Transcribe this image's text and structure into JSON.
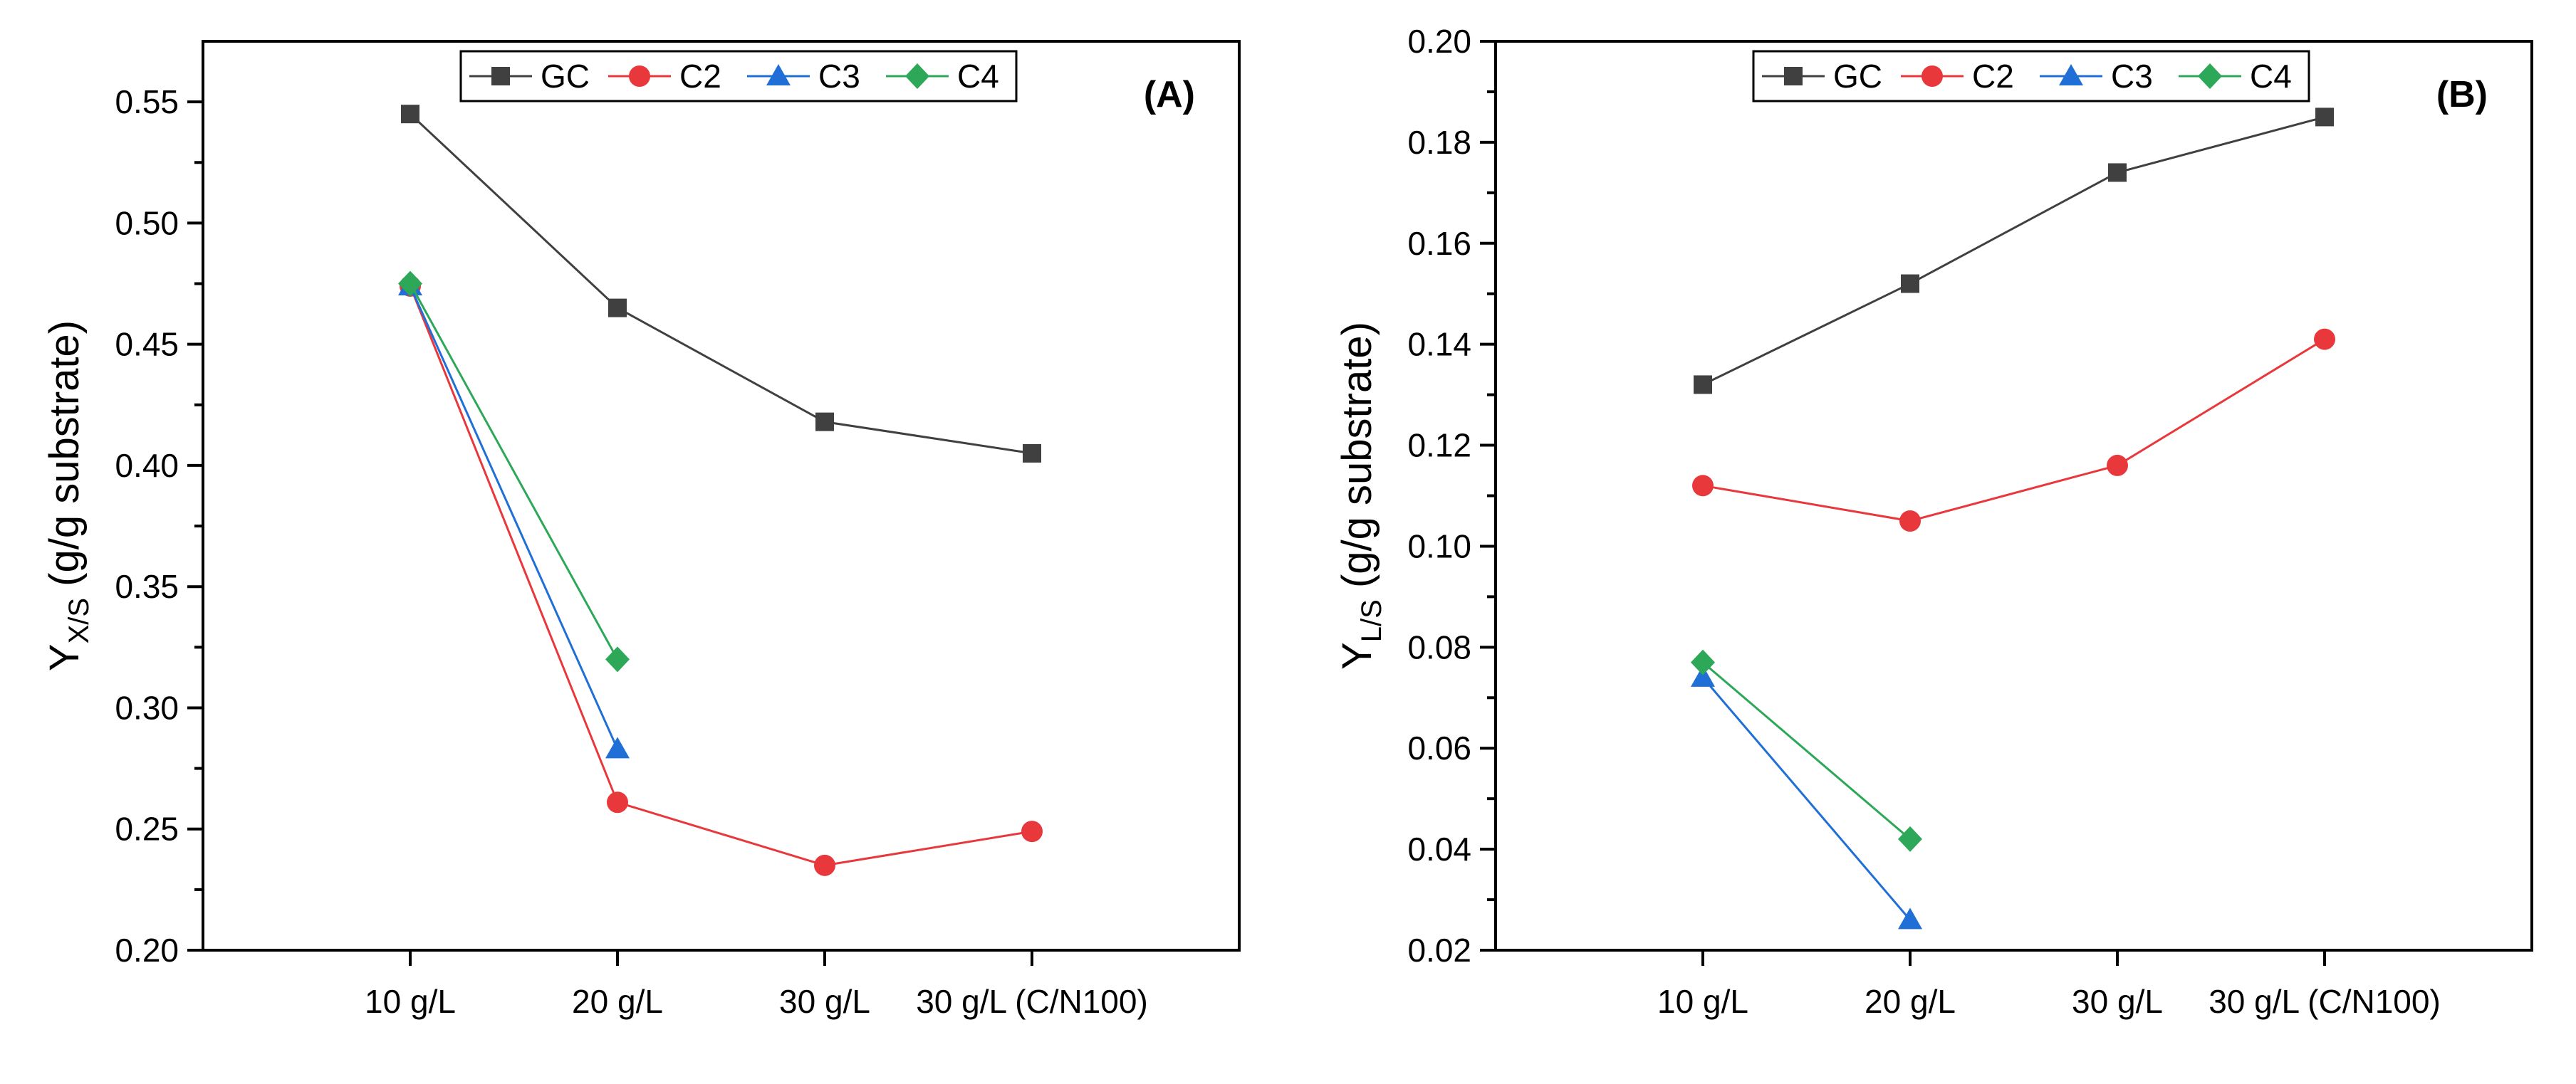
{
  "chart_data": [
    {
      "type": "line",
      "panel_label": "(A)",
      "ylabel": "Y",
      "ylabel_sub": "X/S",
      "ylabel_suffix": " (g/g substrate)",
      "xlabel": "",
      "categories": [
        "10 g/L",
        "20 g/L",
        "30 g/L",
        "30 g/L (C/N100)"
      ],
      "ylim": [
        0.2,
        0.575
      ],
      "yticks": [
        "0.20",
        "0.25",
        "0.30",
        "0.35",
        "0.40",
        "0.45",
        "0.50",
        "0.55"
      ],
      "legend_position": "top-center",
      "grid": false,
      "series": [
        {
          "name": "GC",
          "marker": "square",
          "color": "#404040",
          "values": [
            0.545,
            0.465,
            0.418,
            0.405
          ]
        },
        {
          "name": "C2",
          "marker": "circle",
          "color": "#e8383b",
          "values": [
            0.474,
            0.261,
            0.235,
            0.249
          ]
        },
        {
          "name": "C3",
          "marker": "triangle",
          "color": "#1f6fd6",
          "values": [
            0.474,
            0.283,
            null,
            null
          ]
        },
        {
          "name": "C4",
          "marker": "diamond",
          "color": "#2da858",
          "values": [
            0.475,
            0.32,
            null,
            null
          ]
        }
      ]
    },
    {
      "type": "line",
      "panel_label": "(B)",
      "ylabel": "Y",
      "ylabel_sub": "L/S",
      "ylabel_suffix": " (g/g substrate)",
      "xlabel": "",
      "categories": [
        "10 g/L",
        "20 g/L",
        "30 g/L",
        "30 g/L (C/N100)"
      ],
      "ylim": [
        0.02,
        0.2
      ],
      "yticks": [
        "0.02",
        "0.04",
        "0.06",
        "0.08",
        "0.10",
        "0.12",
        "0.14",
        "0.16",
        "0.18",
        "0.20"
      ],
      "legend_position": "top-center",
      "grid": false,
      "series": [
        {
          "name": "GC",
          "marker": "square",
          "color": "#404040",
          "values": [
            0.132,
            0.152,
            0.174,
            0.185
          ]
        },
        {
          "name": "C2",
          "marker": "circle",
          "color": "#e8383b",
          "values": [
            0.112,
            0.105,
            0.116,
            0.141
          ]
        },
        {
          "name": "C3",
          "marker": "triangle",
          "color": "#1f6fd6",
          "values": [
            0.074,
            0.026,
            null,
            null
          ]
        },
        {
          "name": "C4",
          "marker": "diamond",
          "color": "#2da858",
          "values": [
            0.077,
            0.042,
            null,
            null
          ]
        }
      ]
    }
  ]
}
